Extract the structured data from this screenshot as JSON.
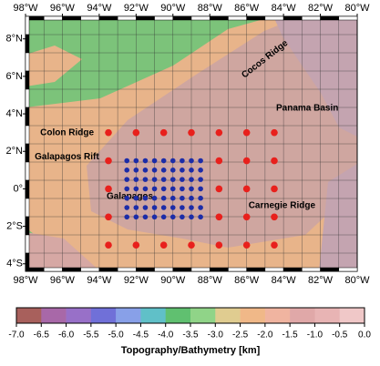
{
  "map": {
    "xlim": [
      -98,
      -80
    ],
    "ylim": [
      -4.4,
      9.2
    ],
    "xticks": [
      {
        "value": -98,
        "label": "98°W"
      },
      {
        "value": -96,
        "label": "96°W"
      },
      {
        "value": -94,
        "label": "94°W"
      },
      {
        "value": -92,
        "label": "92°W"
      },
      {
        "value": -90,
        "label": "90°W"
      },
      {
        "value": -88,
        "label": "88°W"
      },
      {
        "value": -86,
        "label": "86°W"
      },
      {
        "value": -84,
        "label": "84°W"
      },
      {
        "value": -82,
        "label": "82°W"
      },
      {
        "value": -80,
        "label": "80°W"
      }
    ],
    "yticks": [
      {
        "value": 8,
        "label": "8°N"
      },
      {
        "value": 6,
        "label": "6°N"
      },
      {
        "value": 4,
        "label": "4°N"
      },
      {
        "value": 2,
        "label": "2°N"
      },
      {
        "value": 0,
        "label": "0°"
      },
      {
        "value": -2,
        "label": "2°S"
      },
      {
        "value": -4,
        "label": "4°S"
      }
    ],
    "features": [
      {
        "name": "Colon Ridge",
        "lon": -97.2,
        "lat": 3.0
      },
      {
        "name": "Galapagos Rift",
        "lon": -97.5,
        "lat": 1.7
      },
      {
        "name": "Galapagos",
        "lon": -93.6,
        "lat": -0.4
      },
      {
        "name": "Panama Basin",
        "lon": -84.4,
        "lat": 4.3
      },
      {
        "name": "Carnegie Ridge",
        "lon": -85.9,
        "lat": -0.9
      },
      {
        "name": "Cocos Ridge",
        "lon": -86.2,
        "lat": 6.0,
        "rotate": -38
      }
    ],
    "red_stations": {
      "color": "#e8201c",
      "lon": [
        -93.5,
        -92,
        -90.5,
        -89,
        -87.5,
        -86,
        -84.5,
        -93.5,
        -87.5,
        -86,
        -84.5,
        -93.5,
        -87.5,
        -86,
        -84.5,
        -93.5,
        -87.5,
        -86,
        -84.5,
        -93.5,
        -92,
        -90.5,
        -89,
        -87.5,
        -86,
        -84.5
      ],
      "lat": [
        3,
        3,
        3,
        3,
        3,
        3,
        3,
        1.5,
        1.5,
        1.5,
        1.5,
        0,
        0,
        0,
        0,
        -1.5,
        -1.5,
        -1.5,
        -1.5,
        -3,
        -3,
        -3,
        -3,
        -3,
        -3,
        -3
      ]
    },
    "blue_stations": {
      "color": "#1c2ca8",
      "lons": [
        -92.5,
        -92,
        -91.5,
        -91,
        -90.5,
        -90,
        -89.5,
        -89,
        -88.5
      ],
      "lats": [
        1.5,
        1,
        0.5,
        0,
        -0.5,
        -1,
        -1.5
      ]
    },
    "colorbar": {
      "label": "Topography/Bathymetry [km]",
      "lim": [
        -7,
        0
      ],
      "ticks": [
        {
          "value": -7,
          "label": "-7.0"
        },
        -6.5,
        {
          "value": -6,
          "label": "-6.0"
        },
        -5.5,
        {
          "value": -5,
          "label": "-5.0"
        },
        -4.5,
        {
          "value": -4,
          "label": "-4.0"
        },
        -3.5,
        {
          "value": -3,
          "label": "-3.0"
        },
        -2.5,
        {
          "value": -2,
          "label": "-2.0"
        },
        -1.5,
        {
          "value": -1,
          "label": "-1.0"
        },
        -0.5,
        {
          "value": 0,
          "label": "0.0"
        }
      ],
      "colors": [
        "#a8605c",
        "#a868a8",
        "#9870c8",
        "#7070d8",
        "#88a0e8",
        "#60c0c8",
        "#60c070",
        "#90d488",
        "#e0cc90",
        "#f0b888",
        "#f0b4a0",
        "#e0a8a8",
        "#e8b4b4",
        "#f0c8c8"
      ]
    }
  }
}
